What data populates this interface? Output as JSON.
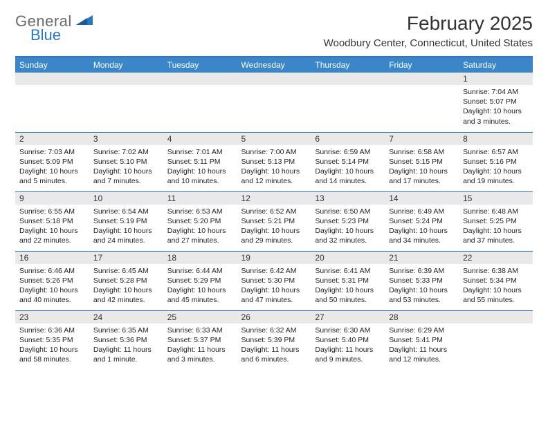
{
  "logo": {
    "text1": "General",
    "text2": "Blue"
  },
  "title": "February 2025",
  "location": "Woodbury Center, Connecticut, United States",
  "colors": {
    "header_bg": "#3a86c8",
    "header_text": "#ffffff",
    "rule": "#2b76c0",
    "daynum_bg": "#e9e9e9",
    "body_text": "#222222",
    "logo_gray": "#6a6a6a",
    "logo_blue": "#2b76c0"
  },
  "days": [
    "Sunday",
    "Monday",
    "Tuesday",
    "Wednesday",
    "Thursday",
    "Friday",
    "Saturday"
  ],
  "weeks": [
    [
      null,
      null,
      null,
      null,
      null,
      null,
      {
        "n": "1",
        "sr": "Sunrise: 7:04 AM",
        "ss": "Sunset: 5:07 PM",
        "dl": "Daylight: 10 hours and 3 minutes."
      }
    ],
    [
      {
        "n": "2",
        "sr": "Sunrise: 7:03 AM",
        "ss": "Sunset: 5:09 PM",
        "dl": "Daylight: 10 hours and 5 minutes."
      },
      {
        "n": "3",
        "sr": "Sunrise: 7:02 AM",
        "ss": "Sunset: 5:10 PM",
        "dl": "Daylight: 10 hours and 7 minutes."
      },
      {
        "n": "4",
        "sr": "Sunrise: 7:01 AM",
        "ss": "Sunset: 5:11 PM",
        "dl": "Daylight: 10 hours and 10 minutes."
      },
      {
        "n": "5",
        "sr": "Sunrise: 7:00 AM",
        "ss": "Sunset: 5:13 PM",
        "dl": "Daylight: 10 hours and 12 minutes."
      },
      {
        "n": "6",
        "sr": "Sunrise: 6:59 AM",
        "ss": "Sunset: 5:14 PM",
        "dl": "Daylight: 10 hours and 14 minutes."
      },
      {
        "n": "7",
        "sr": "Sunrise: 6:58 AM",
        "ss": "Sunset: 5:15 PM",
        "dl": "Daylight: 10 hours and 17 minutes."
      },
      {
        "n": "8",
        "sr": "Sunrise: 6:57 AM",
        "ss": "Sunset: 5:16 PM",
        "dl": "Daylight: 10 hours and 19 minutes."
      }
    ],
    [
      {
        "n": "9",
        "sr": "Sunrise: 6:55 AM",
        "ss": "Sunset: 5:18 PM",
        "dl": "Daylight: 10 hours and 22 minutes."
      },
      {
        "n": "10",
        "sr": "Sunrise: 6:54 AM",
        "ss": "Sunset: 5:19 PM",
        "dl": "Daylight: 10 hours and 24 minutes."
      },
      {
        "n": "11",
        "sr": "Sunrise: 6:53 AM",
        "ss": "Sunset: 5:20 PM",
        "dl": "Daylight: 10 hours and 27 minutes."
      },
      {
        "n": "12",
        "sr": "Sunrise: 6:52 AM",
        "ss": "Sunset: 5:21 PM",
        "dl": "Daylight: 10 hours and 29 minutes."
      },
      {
        "n": "13",
        "sr": "Sunrise: 6:50 AM",
        "ss": "Sunset: 5:23 PM",
        "dl": "Daylight: 10 hours and 32 minutes."
      },
      {
        "n": "14",
        "sr": "Sunrise: 6:49 AM",
        "ss": "Sunset: 5:24 PM",
        "dl": "Daylight: 10 hours and 34 minutes."
      },
      {
        "n": "15",
        "sr": "Sunrise: 6:48 AM",
        "ss": "Sunset: 5:25 PM",
        "dl": "Daylight: 10 hours and 37 minutes."
      }
    ],
    [
      {
        "n": "16",
        "sr": "Sunrise: 6:46 AM",
        "ss": "Sunset: 5:26 PM",
        "dl": "Daylight: 10 hours and 40 minutes."
      },
      {
        "n": "17",
        "sr": "Sunrise: 6:45 AM",
        "ss": "Sunset: 5:28 PM",
        "dl": "Daylight: 10 hours and 42 minutes."
      },
      {
        "n": "18",
        "sr": "Sunrise: 6:44 AM",
        "ss": "Sunset: 5:29 PM",
        "dl": "Daylight: 10 hours and 45 minutes."
      },
      {
        "n": "19",
        "sr": "Sunrise: 6:42 AM",
        "ss": "Sunset: 5:30 PM",
        "dl": "Daylight: 10 hours and 47 minutes."
      },
      {
        "n": "20",
        "sr": "Sunrise: 6:41 AM",
        "ss": "Sunset: 5:31 PM",
        "dl": "Daylight: 10 hours and 50 minutes."
      },
      {
        "n": "21",
        "sr": "Sunrise: 6:39 AM",
        "ss": "Sunset: 5:33 PM",
        "dl": "Daylight: 10 hours and 53 minutes."
      },
      {
        "n": "22",
        "sr": "Sunrise: 6:38 AM",
        "ss": "Sunset: 5:34 PM",
        "dl": "Daylight: 10 hours and 55 minutes."
      }
    ],
    [
      {
        "n": "23",
        "sr": "Sunrise: 6:36 AM",
        "ss": "Sunset: 5:35 PM",
        "dl": "Daylight: 10 hours and 58 minutes."
      },
      {
        "n": "24",
        "sr": "Sunrise: 6:35 AM",
        "ss": "Sunset: 5:36 PM",
        "dl": "Daylight: 11 hours and 1 minute."
      },
      {
        "n": "25",
        "sr": "Sunrise: 6:33 AM",
        "ss": "Sunset: 5:37 PM",
        "dl": "Daylight: 11 hours and 3 minutes."
      },
      {
        "n": "26",
        "sr": "Sunrise: 6:32 AM",
        "ss": "Sunset: 5:39 PM",
        "dl": "Daylight: 11 hours and 6 minutes."
      },
      {
        "n": "27",
        "sr": "Sunrise: 6:30 AM",
        "ss": "Sunset: 5:40 PM",
        "dl": "Daylight: 11 hours and 9 minutes."
      },
      {
        "n": "28",
        "sr": "Sunrise: 6:29 AM",
        "ss": "Sunset: 5:41 PM",
        "dl": "Daylight: 11 hours and 12 minutes."
      },
      null
    ]
  ]
}
